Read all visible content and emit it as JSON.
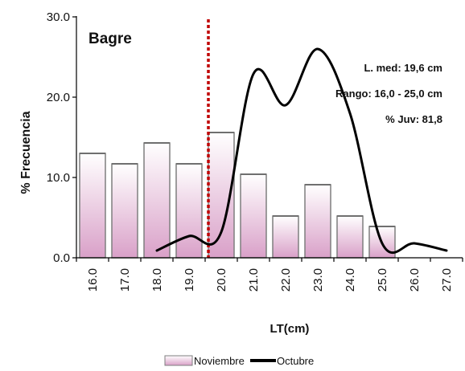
{
  "chart_data": {
    "type": "bar",
    "title": "Bagre",
    "xlabel": "LT(cm)",
    "ylabel": "% Frecuencia",
    "ylim": [
      0,
      30
    ],
    "yticks": [
      "0.0",
      "10.0",
      "20.0",
      "30.0"
    ],
    "categories": [
      "16.0",
      "17.0",
      "18.0",
      "19.0",
      "20.0",
      "21.0",
      "22.0",
      "23.0",
      "24.0",
      "25.0",
      "26.0",
      "27.0"
    ],
    "series": [
      {
        "name": "Noviembre",
        "kind": "bar",
        "values": [
          13.0,
          11.7,
          14.3,
          11.7,
          15.6,
          10.4,
          5.2,
          9.1,
          5.2,
          3.9,
          0,
          0
        ]
      },
      {
        "name": "Octubre",
        "kind": "line",
        "values": [
          null,
          null,
          0.9,
          2.7,
          3.2,
          22.9,
          19.0,
          26.0,
          18.0,
          1.8,
          1.8,
          0.9
        ]
      }
    ],
    "reference_line": {
      "x": 19.6,
      "style": "dotted",
      "color": "#c00000"
    },
    "annotations": [
      "L. med: 19,6 cm",
      "Rango: 16,0 - 25,0 cm",
      "% Juv: 81,8"
    ],
    "legend_position": "bottom",
    "grid": false,
    "colors": {
      "bar_top": "#ffffff",
      "bar_bottom": "#d9a0c8",
      "bar_edge": "#7f7f7f",
      "line": "#000000"
    }
  }
}
